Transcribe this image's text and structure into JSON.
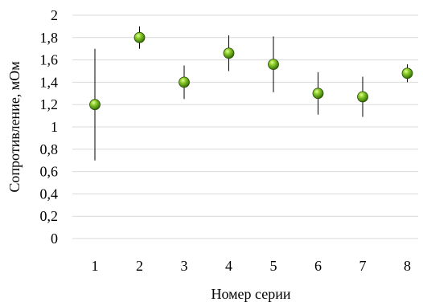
{
  "chart_data": {
    "type": "scatter",
    "title": "",
    "xlabel": "Номер серии",
    "ylabel": "Сопротивление, мОм",
    "ylim": [
      0,
      2
    ],
    "yticks": [
      "0",
      "0,2",
      "0,4",
      "0,6",
      "0,8",
      "1",
      "1,2",
      "1,4",
      "1,6",
      "1,8",
      "2"
    ],
    "grid": true,
    "legend": "none",
    "marker_color": "#6aa521",
    "points": [
      {
        "x": "1",
        "y": 1.2,
        "err_low": 0.7,
        "err_high": 1.7
      },
      {
        "x": "2",
        "y": 1.8,
        "err_low": 1.7,
        "err_high": 1.9
      },
      {
        "x": "3",
        "y": 1.4,
        "err_low": 1.25,
        "err_high": 1.55
      },
      {
        "x": "4",
        "y": 1.66,
        "err_low": 1.5,
        "err_high": 1.82
      },
      {
        "x": "5",
        "y": 1.56,
        "err_low": 1.31,
        "err_high": 1.81
      },
      {
        "x": "6",
        "y": 1.3,
        "err_low": 1.11,
        "err_high": 1.49
      },
      {
        "x": "7",
        "y": 1.27,
        "err_low": 1.09,
        "err_high": 1.45
      },
      {
        "x": "8",
        "y": 1.48,
        "err_low": 1.4,
        "err_high": 1.56
      }
    ]
  }
}
